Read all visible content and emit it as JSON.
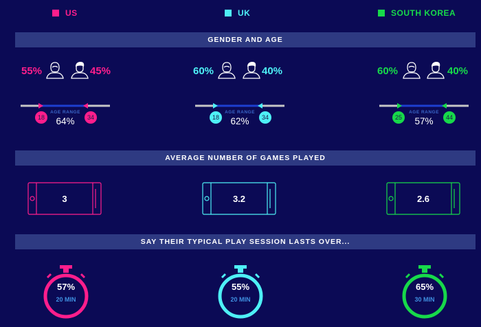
{
  "legend": [
    {
      "label": "US",
      "color": "#ff1e8c"
    },
    {
      "label": "UK",
      "color": "#4ef0f6"
    },
    {
      "label": "SOUTH KOREA",
      "color": "#17d94a"
    }
  ],
  "sections": {
    "gender_age": "GENDER AND AGE",
    "games": "AVERAGE NUMBER OF GAMES PLAYED",
    "session": "SAY THEIR TYPICAL PLAY SESSION LASTS OVER..."
  },
  "range_label": "AGE RANGE",
  "countries": [
    {
      "key": "us",
      "color": "#ff1e8c",
      "female_pct": "55%",
      "male_pct": "45%",
      "age_min": "18",
      "age_max": "34",
      "age_pct": "64%",
      "games": "3",
      "session_pct": "57%",
      "session_time": "20 MIN"
    },
    {
      "key": "uk",
      "color": "#4ef0f6",
      "female_pct": "60%",
      "male_pct": "40%",
      "age_min": "18",
      "age_max": "34",
      "age_pct": "62%",
      "games": "3.2",
      "session_pct": "55%",
      "session_time": "20 MIN"
    },
    {
      "key": "kr",
      "color": "#17d94a",
      "female_pct": "60%",
      "male_pct": "40%",
      "age_min": "25",
      "age_max": "44",
      "age_pct": "57%",
      "games": "2.6",
      "session_pct": "65%",
      "session_time": "30 MIN"
    }
  ],
  "icons": {
    "female": "female-person-icon",
    "male": "male-person-icon",
    "phone": "phone-icon",
    "stopwatch": "stopwatch-icon"
  }
}
